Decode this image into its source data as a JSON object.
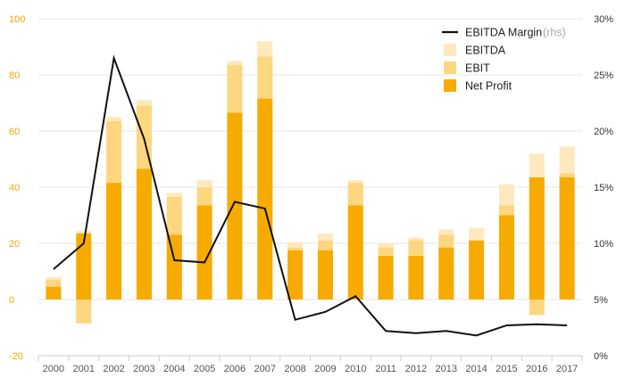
{
  "chart_data": {
    "type": "bar",
    "categories": [
      "2000",
      "2001",
      "2002",
      "2003",
      "2004",
      "2005",
      "2006",
      "2007",
      "2008",
      "2009",
      "2010",
      "2011",
      "2012",
      "2013",
      "2014",
      "2015",
      "2016",
      "2017"
    ],
    "series": [
      {
        "name": "Net Profit",
        "values": [
          4.5,
          23.5,
          41.5,
          46.5,
          23,
          33.5,
          66.5,
          71.5,
          17.5,
          17.5,
          33.5,
          15.5,
          15.5,
          18.5,
          21,
          30,
          43.5,
          43.5
        ]
      },
      {
        "name": "EBIT",
        "values": [
          7,
          -8.5,
          63.5,
          69,
          36.5,
          40,
          83.5,
          86.5,
          18.5,
          21,
          41.5,
          18.5,
          21,
          23,
          21,
          33.5,
          -5.5,
          45
        ]
      },
      {
        "name": "EBITDA",
        "values": [
          8,
          24.5,
          65,
          71,
          38,
          42.5,
          85,
          92,
          20.5,
          23.5,
          42.5,
          20,
          22,
          25,
          25.5,
          41,
          52,
          54.5
        ]
      },
      {
        "name": "EBITDA Margin",
        "axis_note": "(rhs)",
        "values": [
          7.7,
          10,
          26.5,
          19.3,
          8.5,
          8.3,
          13.7,
          13.1,
          3.2,
          3.9,
          5.3,
          2.2,
          2,
          2.2,
          1.8,
          2.7,
          2.8,
          2.7
        ]
      }
    ],
    "y_left": {
      "min": -20,
      "max": 100,
      "ticks": [
        "-20",
        "0",
        "20",
        "40",
        "60",
        "80",
        "100"
      ],
      "color": "#f2a900"
    },
    "y_right": {
      "min": 0,
      "max": 30,
      "ticks": [
        "0%",
        "5%",
        "10%",
        "15%",
        "20%",
        "25%",
        "30%"
      ]
    },
    "grid": true,
    "legend_position": "top-right",
    "colors": {
      "net_profit": "#f7ab00",
      "ebit": "#fdd680",
      "ebitda": "#fee9bf",
      "margin_line": "#111111",
      "grid": "#e6e6e6"
    }
  }
}
